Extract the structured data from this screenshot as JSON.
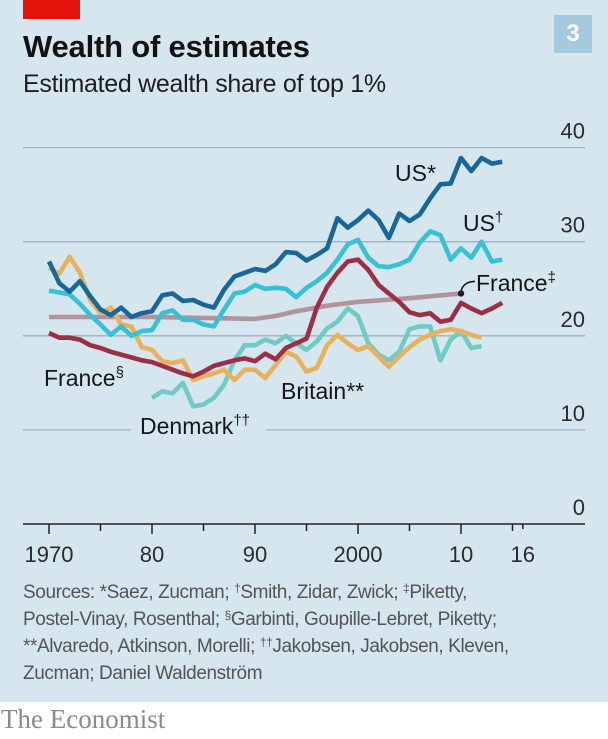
{
  "header": {
    "title": "Wealth of estimates",
    "subtitle": "Estimated wealth share of top 1%",
    "chart_number": "3"
  },
  "chart_data": {
    "type": "line",
    "title": "Wealth of estimates",
    "subtitle": "Estimated wealth share of top 1%",
    "xlabel": "",
    "ylabel": "",
    "xlim": [
      1970,
      2016
    ],
    "ylim": [
      0,
      40
    ],
    "grid": true,
    "y_axis_side": "right",
    "y_ticks": [
      {
        "value": 0,
        "label": "0"
      },
      {
        "value": 10,
        "label": "10"
      },
      {
        "value": 20,
        "label": "20"
      },
      {
        "value": 30,
        "label": "30"
      },
      {
        "value": 40,
        "label": "40"
      }
    ],
    "x_ticks": [
      {
        "value": 1970,
        "label": "1970"
      },
      {
        "value": 1980,
        "label": "80"
      },
      {
        "value": 1990,
        "label": "90"
      },
      {
        "value": 2000,
        "label": "2000"
      },
      {
        "value": 2010,
        "label": "10"
      },
      {
        "value": 2016,
        "label": "16"
      }
    ],
    "minor_ticks": [
      1975,
      1985,
      1995,
      2005,
      2015
    ],
    "series": [
      {
        "name": "US",
        "mark": "*",
        "color": "#17679a",
        "points": [
          [
            1970,
            27.9
          ],
          [
            1971,
            25.6
          ],
          [
            1972,
            24.7
          ],
          [
            1973,
            25.8
          ],
          [
            1974,
            24.2
          ],
          [
            1975,
            22.8
          ],
          [
            1976,
            22.2
          ],
          [
            1977,
            23.0
          ],
          [
            1978,
            22.0
          ],
          [
            1979,
            22.4
          ],
          [
            1980,
            22.6
          ],
          [
            1981,
            24.3
          ],
          [
            1982,
            24.5
          ],
          [
            1983,
            23.7
          ],
          [
            1984,
            23.8
          ],
          [
            1985,
            23.3
          ],
          [
            1986,
            23.0
          ],
          [
            1987,
            24.9
          ],
          [
            1988,
            26.3
          ],
          [
            1989,
            26.7
          ],
          [
            1990,
            27.1
          ],
          [
            1991,
            26.9
          ],
          [
            1992,
            27.6
          ],
          [
            1993,
            28.9
          ],
          [
            1994,
            28.8
          ],
          [
            1995,
            28.0
          ],
          [
            1996,
            28.6
          ],
          [
            1997,
            29.3
          ],
          [
            1998,
            32.5
          ],
          [
            1999,
            31.5
          ],
          [
            2000,
            32.3
          ],
          [
            2001,
            33.3
          ],
          [
            2002,
            32.3
          ],
          [
            2003,
            30.4
          ],
          [
            2004,
            33.0
          ],
          [
            2005,
            32.2
          ],
          [
            2006,
            32.9
          ],
          [
            2007,
            34.6
          ],
          [
            2008,
            36.1
          ],
          [
            2009,
            36.2
          ],
          [
            2010,
            38.9
          ],
          [
            2011,
            37.5
          ],
          [
            2012,
            38.9
          ],
          [
            2013,
            38.3
          ],
          [
            2014,
            38.5
          ]
        ]
      },
      {
        "name": "US",
        "mark": "†",
        "color": "#38c0d6",
        "points": [
          [
            1970,
            24.8
          ],
          [
            1971,
            24.6
          ],
          [
            1972,
            24.4
          ],
          [
            1973,
            23.4
          ],
          [
            1974,
            22.2
          ],
          [
            1975,
            21.2
          ],
          [
            1976,
            20.1
          ],
          [
            1977,
            21.0
          ],
          [
            1978,
            20.0
          ],
          [
            1979,
            20.5
          ],
          [
            1980,
            20.6
          ],
          [
            1981,
            22.4
          ],
          [
            1982,
            22.7
          ],
          [
            1983,
            21.7
          ],
          [
            1984,
            21.7
          ],
          [
            1985,
            21.2
          ],
          [
            1986,
            21.0
          ],
          [
            1987,
            22.8
          ],
          [
            1988,
            24.5
          ],
          [
            1989,
            24.7
          ],
          [
            1990,
            25.4
          ],
          [
            1991,
            25.0
          ],
          [
            1992,
            25.1
          ],
          [
            1993,
            25.0
          ],
          [
            1994,
            24.1
          ],
          [
            1995,
            25.1
          ],
          [
            1996,
            25.8
          ],
          [
            1997,
            26.7
          ],
          [
            1998,
            28.1
          ],
          [
            1999,
            29.7
          ],
          [
            2000,
            30.2
          ],
          [
            2001,
            28.3
          ],
          [
            2002,
            27.4
          ],
          [
            2003,
            27.3
          ],
          [
            2004,
            27.6
          ],
          [
            2005,
            28.1
          ],
          [
            2006,
            29.9
          ],
          [
            2007,
            31.1
          ],
          [
            2008,
            30.7
          ],
          [
            2009,
            28.1
          ],
          [
            2010,
            29.3
          ],
          [
            2011,
            28.3
          ],
          [
            2012,
            30.0
          ],
          [
            2013,
            27.9
          ],
          [
            2014,
            28.1
          ]
        ]
      },
      {
        "name": "France",
        "mark": "‡",
        "color": "#b2929b",
        "points": [
          [
            1970,
            22.0
          ],
          [
            1975,
            22.0
          ],
          [
            1980,
            22.0
          ],
          [
            1985,
            21.9
          ],
          [
            1990,
            21.8
          ],
          [
            1992,
            22.1
          ],
          [
            1994,
            22.6
          ],
          [
            1997,
            23.2
          ],
          [
            2000,
            23.6
          ],
          [
            2005,
            24.0
          ],
          [
            2010,
            24.5
          ]
        ]
      },
      {
        "name": "France",
        "mark": "§",
        "color": "#9c2f45",
        "points": [
          [
            1970,
            20.3
          ],
          [
            1971,
            19.8
          ],
          [
            1972,
            19.8
          ],
          [
            1973,
            19.6
          ],
          [
            1974,
            19.0
          ],
          [
            1975,
            18.7
          ],
          [
            1976,
            18.3
          ],
          [
            1977,
            18.0
          ],
          [
            1978,
            17.7
          ],
          [
            1979,
            17.4
          ],
          [
            1980,
            17.2
          ],
          [
            1981,
            16.8
          ],
          [
            1982,
            16.4
          ],
          [
            1983,
            16.0
          ],
          [
            1984,
            15.7
          ],
          [
            1985,
            16.2
          ],
          [
            1986,
            16.8
          ],
          [
            1987,
            17.1
          ],
          [
            1988,
            17.4
          ],
          [
            1989,
            17.6
          ],
          [
            1990,
            17.3
          ],
          [
            1991,
            18.1
          ],
          [
            1992,
            17.5
          ],
          [
            1993,
            18.7
          ],
          [
            1994,
            19.2
          ],
          [
            1995,
            19.7
          ],
          [
            1996,
            23.0
          ],
          [
            1997,
            25.2
          ],
          [
            1998,
            26.7
          ],
          [
            1999,
            27.9
          ],
          [
            2000,
            28.1
          ],
          [
            2001,
            27.0
          ],
          [
            2002,
            25.4
          ],
          [
            2003,
            24.5
          ],
          [
            2004,
            23.6
          ],
          [
            2005,
            22.5
          ],
          [
            2006,
            22.2
          ],
          [
            2007,
            22.4
          ],
          [
            2008,
            21.5
          ],
          [
            2009,
            21.7
          ],
          [
            2010,
            23.5
          ],
          [
            2011,
            22.9
          ],
          [
            2012,
            22.4
          ],
          [
            2013,
            22.9
          ],
          [
            2014,
            23.5
          ]
        ]
      },
      {
        "name": "Britain",
        "mark": "**",
        "color": "#e8b25c",
        "points": [
          [
            1970,
            27.2
          ],
          [
            1971,
            26.6
          ],
          [
            1972,
            28.4
          ],
          [
            1973,
            26.7
          ],
          [
            1974,
            23.8
          ],
          [
            1975,
            22.4
          ],
          [
            1976,
            23.0
          ],
          [
            1977,
            21.2
          ],
          [
            1978,
            21.0
          ],
          [
            1979,
            18.8
          ],
          [
            1980,
            18.5
          ],
          [
            1981,
            17.3
          ],
          [
            1982,
            17.1
          ],
          [
            1983,
            17.4
          ],
          [
            1984,
            15.3
          ],
          [
            1985,
            15.7
          ],
          [
            1986,
            16.0
          ],
          [
            1987,
            16.4
          ],
          [
            1988,
            15.3
          ],
          [
            1989,
            16.4
          ],
          [
            1990,
            16.4
          ],
          [
            1991,
            15.5
          ],
          [
            1992,
            16.9
          ],
          [
            1993,
            18.3
          ],
          [
            1994,
            17.8
          ],
          [
            1995,
            16.2
          ],
          [
            1996,
            16.6
          ],
          [
            1997,
            19.0
          ],
          [
            1998,
            20.1
          ],
          [
            1999,
            19.2
          ],
          [
            2000,
            18.5
          ],
          [
            2001,
            18.9
          ],
          [
            2002,
            17.8
          ],
          [
            2003,
            16.7
          ],
          [
            2004,
            17.8
          ],
          [
            2005,
            18.8
          ],
          [
            2006,
            19.6
          ],
          [
            2007,
            20.1
          ],
          [
            2008,
            20.5
          ],
          [
            2009,
            20.7
          ],
          [
            2010,
            20.5
          ],
          [
            2011,
            20.1
          ],
          [
            2012,
            19.8
          ]
        ]
      },
      {
        "name": "Denmark",
        "mark": "††",
        "color": "#6fcbc5",
        "points": [
          [
            1980,
            13.4
          ],
          [
            1981,
            14.1
          ],
          [
            1982,
            13.9
          ],
          [
            1983,
            15.0
          ],
          [
            1984,
            12.5
          ],
          [
            1985,
            12.7
          ],
          [
            1986,
            13.4
          ],
          [
            1987,
            14.8
          ],
          [
            1988,
            17.4
          ],
          [
            1989,
            19.0
          ],
          [
            1990,
            19.0
          ],
          [
            1991,
            19.6
          ],
          [
            1992,
            19.2
          ],
          [
            1993,
            20.0
          ],
          [
            1994,
            19.2
          ],
          [
            1995,
            18.5
          ],
          [
            1996,
            19.4
          ],
          [
            1997,
            20.8
          ],
          [
            1998,
            21.5
          ],
          [
            1999,
            22.9
          ],
          [
            2000,
            22.1
          ],
          [
            2001,
            19.2
          ],
          [
            2002,
            18.0
          ],
          [
            2003,
            17.4
          ],
          [
            2004,
            18.3
          ],
          [
            2005,
            20.7
          ],
          [
            2006,
            21.0
          ],
          [
            2007,
            21.0
          ],
          [
            2008,
            17.4
          ],
          [
            2009,
            19.6
          ],
          [
            2010,
            20.5
          ],
          [
            2011,
            18.7
          ],
          [
            2012,
            18.9
          ]
        ]
      }
    ]
  },
  "footnotes": [
    [
      {
        "text": "Sources: *Saez, Zucman; "
      },
      {
        "sup": "†"
      },
      {
        "text": "Smith, Zidar, Zwick; "
      },
      {
        "sup": "‡"
      },
      {
        "text": "Piketty,"
      }
    ],
    [
      {
        "text": "Postel-Vinay, Rosenthal; "
      },
      {
        "sup": "§"
      },
      {
        "text": "Garbinti, Goupille-Lebret, Piketty;"
      }
    ],
    [
      {
        "text": "**Alvaredo, Atkinson, Morelli; "
      },
      {
        "sup": "††"
      },
      {
        "text": "Jakobsen, Jakobsen, Kleven,"
      }
    ],
    [
      {
        "text": "Zucman; Daniel Waldenström"
      }
    ]
  ],
  "brand": "The Economist"
}
